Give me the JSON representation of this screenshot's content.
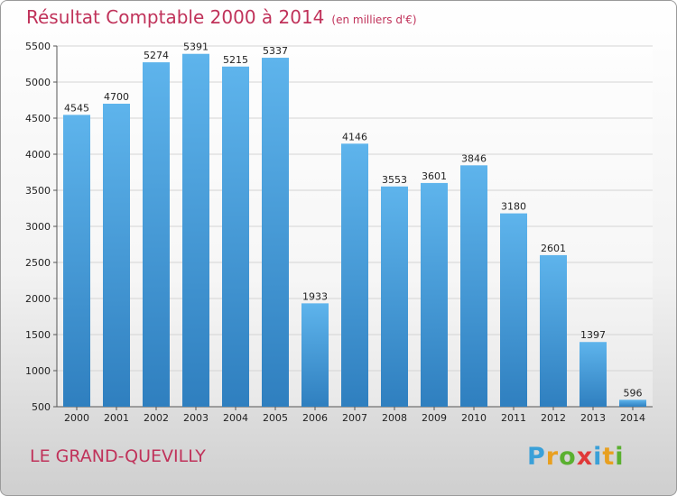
{
  "title": "Résultat Comptable 2000 à 2014",
  "subtitle": "(en milliers d'€)",
  "city": "LE GRAND-QUEVILLY",
  "logo": {
    "text": "Proxiti",
    "letters": [
      "P",
      "r",
      "o",
      "x",
      "i",
      "t",
      "i"
    ],
    "colors": [
      "#3aa0d8",
      "#e8a020",
      "#5ab030",
      "#e03838",
      "#3aa0d8",
      "#e8a020",
      "#5ab030"
    ]
  },
  "chart_data": {
    "type": "bar",
    "categories": [
      "2000",
      "2001",
      "2002",
      "2003",
      "2004",
      "2005",
      "2006",
      "2007",
      "2008",
      "2009",
      "2010",
      "2011",
      "2012",
      "2013",
      "2014"
    ],
    "values": [
      4545,
      4700,
      5274,
      5391,
      5215,
      5337,
      1933,
      4146,
      3553,
      3601,
      3846,
      3180,
      2601,
      1397,
      596
    ],
    "ylim": [
      500,
      5500
    ],
    "yticks": [
      500,
      1000,
      1500,
      2000,
      2500,
      3000,
      3500,
      4000,
      4500,
      5000,
      5500
    ],
    "grid": true,
    "bar_color": "#4ea6e4",
    "title": "Résultat Comptable 2000 à 2014",
    "xlabel": "",
    "ylabel": ""
  }
}
